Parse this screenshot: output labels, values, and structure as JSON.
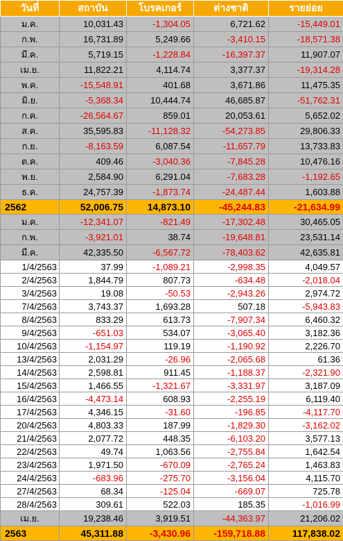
{
  "headers": [
    "วันที่",
    "สถาบัน",
    "โบรคเกอร์",
    "ต่างชาติ",
    "รายย่อย"
  ],
  "colors": {
    "header_bg": "#f7a800",
    "total_bg": "#ffb600",
    "month_bg": "#bfbfbf",
    "negative": "#e00000"
  },
  "rows": [
    {
      "type": "month",
      "label": "ม.ค.",
      "values": [
        "10,031.43",
        "-1,304.05",
        "6,721.62",
        "-15,449.01"
      ]
    },
    {
      "type": "month",
      "label": "ก.พ.",
      "values": [
        "16,731.89",
        "5,249.66",
        "-3,410.15",
        "-18,571.38"
      ]
    },
    {
      "type": "month",
      "label": "มี.ค.",
      "values": [
        "5,719.15",
        "-1,228.84",
        "-16,397.37",
        "11,907.07"
      ]
    },
    {
      "type": "month",
      "label": "เม.ย.",
      "values": [
        "11,822.21",
        "4,114.74",
        "3,377.37",
        "-19,314.28"
      ]
    },
    {
      "type": "month",
      "label": "พ.ค.",
      "values": [
        "-15,548.91",
        "401.68",
        "3,671.86",
        "11,475.35"
      ]
    },
    {
      "type": "month",
      "label": "มิ.ย.",
      "values": [
        "-5,368.34",
        "10,444.74",
        "46,685.87",
        "-51,762.31"
      ]
    },
    {
      "type": "month",
      "label": "ก.ค.",
      "values": [
        "-26,564.67",
        "859.01",
        "20,053.61",
        "5,652.02"
      ]
    },
    {
      "type": "month",
      "label": "ส.ค.",
      "values": [
        "35,595.83",
        "-11,128.32",
        "-54,273.85",
        "29,806.33"
      ]
    },
    {
      "type": "month",
      "label": "ก.ย.",
      "values": [
        "-8,163.59",
        "6,087.54",
        "-11,657.79",
        "13,733.83"
      ]
    },
    {
      "type": "month",
      "label": "ต.ค.",
      "values": [
        "409.46",
        "-3,040.36",
        "-7,845.28",
        "10,476.16"
      ]
    },
    {
      "type": "month",
      "label": "พ.ย.",
      "values": [
        "2,584.90",
        "6,291.04",
        "-7,683.28",
        "-1,192.65"
      ]
    },
    {
      "type": "month",
      "label": "ธ.ค.",
      "values": [
        "24,757.39",
        "-1,873.74",
        "-24,487.44",
        "1,603.88"
      ]
    },
    {
      "type": "total",
      "label": "2562",
      "values": [
        "52,006.75",
        "14,873.10",
        "-45,244.83",
        "-21,634.99"
      ]
    },
    {
      "type": "month",
      "label": "ม.ค.",
      "values": [
        "-12,341.07",
        "-821.49",
        "-17,302.48",
        "30,465.05"
      ]
    },
    {
      "type": "month",
      "label": "ก.พ.",
      "values": [
        "-3,921.01",
        "38.74",
        "-19,648.81",
        "23,531.14"
      ]
    },
    {
      "type": "month",
      "label": "มี.ค.",
      "values": [
        "42,335.50",
        "-6,567.72",
        "-78,403.62",
        "42,635.81"
      ]
    },
    {
      "type": "day",
      "label": "1/4/2563",
      "values": [
        "37.99",
        "-1,089.21",
        "-2,998.35",
        "4,049.57"
      ]
    },
    {
      "type": "day",
      "label": "2/4/2563",
      "values": [
        "1,844.79",
        "807.73",
        "-634.48",
        "-2,018.04"
      ]
    },
    {
      "type": "day",
      "label": "3/4/2563",
      "values": [
        "19.08",
        "-50.53",
        "-2,943.26",
        "2,974.72"
      ]
    },
    {
      "type": "day",
      "label": "7/4/2563",
      "values": [
        "3,743.37",
        "1,693.28",
        "507.18",
        "-5,943.83"
      ]
    },
    {
      "type": "day",
      "label": "8/4/2563",
      "values": [
        "833.29",
        "613.73",
        "-7,907.34",
        "6,460.32"
      ]
    },
    {
      "type": "day",
      "label": "9/4/2563",
      "values": [
        "-651.03",
        "534.07",
        "-3,065.40",
        "3,182.36"
      ]
    },
    {
      "type": "day",
      "label": "10/4/2563",
      "values": [
        "-1,154.97",
        "119.19",
        "-1,190.92",
        "2,226.70"
      ]
    },
    {
      "type": "day",
      "label": "13/4/2563",
      "values": [
        "2,031.29",
        "-26.96",
        "-2,065.68",
        "61.36"
      ]
    },
    {
      "type": "day",
      "label": "14/4/2563",
      "values": [
        "2,598.81",
        "911.45",
        "-1,188.37",
        "-2,321.90"
      ]
    },
    {
      "type": "day",
      "label": "15/4/2563",
      "values": [
        "1,466.55",
        "-1,321.67",
        "-3,331.97",
        "3,187.09"
      ]
    },
    {
      "type": "day",
      "label": "16/4/2563",
      "values": [
        "-4,473.14",
        "608.93",
        "-2,255.19",
        "6,119.40"
      ]
    },
    {
      "type": "day",
      "label": "17/4/2563",
      "values": [
        "4,346.15",
        "-31.60",
        "-196.85",
        "-4,117.70"
      ]
    },
    {
      "type": "day",
      "label": "20/4/2563",
      "values": [
        "4,803.33",
        "187.99",
        "-1,829.30",
        "-3,162.02"
      ]
    },
    {
      "type": "day",
      "label": "21/4/2563",
      "values": [
        "2,077.72",
        "448.35",
        "-6,103.20",
        "3,577.13"
      ]
    },
    {
      "type": "day",
      "label": "22/4/2563",
      "values": [
        "49.74",
        "1,063.56",
        "-2,755.84",
        "1,642.54"
      ]
    },
    {
      "type": "day",
      "label": "23/4/2563",
      "values": [
        "1,971.50",
        "-670.09",
        "-2,765.24",
        "1,463.83"
      ]
    },
    {
      "type": "day",
      "label": "24/4/2563",
      "values": [
        "-683.96",
        "-275.70",
        "-3,156.04",
        "4,115.70"
      ]
    },
    {
      "type": "day",
      "label": "27/4/2563",
      "values": [
        "68.34",
        "-125.04",
        "-669.07",
        "725.78"
      ]
    },
    {
      "type": "day",
      "label": "28/4/2563",
      "values": [
        "309.61",
        "522.03",
        "185.35",
        "-1,016.99"
      ]
    },
    {
      "type": "month",
      "label": "เม.ย.",
      "values": [
        "19,238.46",
        "3,919.51",
        "-44,363.97",
        "21,206.02"
      ]
    },
    {
      "type": "total",
      "label": "2563",
      "values": [
        "45,311.88",
        "-3,430.96",
        "-159,718.88",
        "117,838.02"
      ]
    }
  ]
}
